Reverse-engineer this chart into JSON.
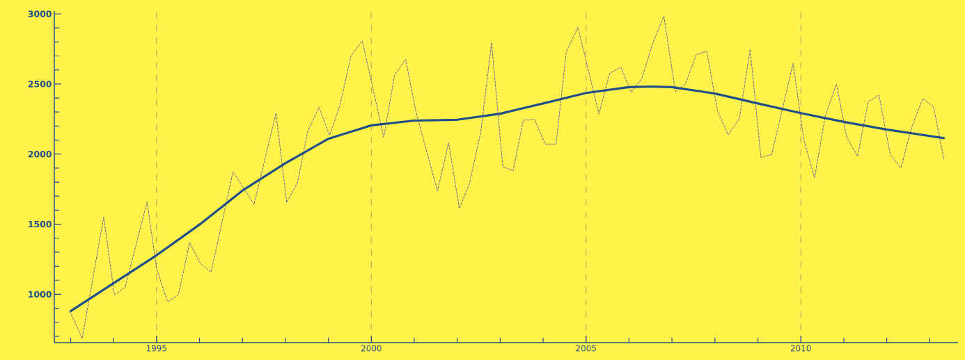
{
  "chart_data": {
    "type": "line",
    "xlim": [
      1992.62,
      2013.66
    ],
    "ylim": [
      655,
      3020
    ],
    "xticks": [
      {
        "value": 1993,
        "label": null
      },
      {
        "value": 1994,
        "label": null
      },
      1995,
      {
        "value": 1996,
        "label": null
      },
      {
        "value": 1997,
        "label": null
      },
      {
        "value": 1998,
        "label": null
      },
      {
        "value": 1999,
        "label": null
      },
      2000,
      {
        "value": 2001,
        "label": null
      },
      {
        "value": 2002,
        "label": null
      },
      {
        "value": 2003,
        "label": null
      },
      {
        "value": 2004,
        "label": null
      },
      2005,
      {
        "value": 2006,
        "label": null
      },
      {
        "value": 2007,
        "label": null
      },
      {
        "value": 2008,
        "label": null
      },
      {
        "value": 2009,
        "label": null
      },
      2010,
      {
        "value": 2011,
        "label": null
      },
      {
        "value": 2012,
        "label": null
      },
      {
        "value": 2013,
        "label": null
      }
    ],
    "yticks": [
      {
        "value": 700,
        "label": null
      },
      {
        "value": 800,
        "label": null
      },
      {
        "value": 900,
        "label": null
      },
      1000,
      {
        "value": 1100,
        "label": null
      },
      {
        "value": 1200,
        "label": null
      },
      {
        "value": 1300,
        "label": null
      },
      {
        "value": 1400,
        "label": null
      },
      1500,
      {
        "value": 1600,
        "label": null
      },
      {
        "value": 1700,
        "label": null
      },
      {
        "value": 1800,
        "label": null
      },
      {
        "value": 1900,
        "label": null
      },
      2000,
      {
        "value": 2100,
        "label": null
      },
      {
        "value": 2200,
        "label": null
      },
      {
        "value": 2300,
        "label": null
      },
      {
        "value": 2400,
        "label": null
      },
      2500,
      {
        "value": 2600,
        "label": null
      },
      {
        "value": 2700,
        "label": null
      },
      {
        "value": 2800,
        "label": null
      },
      {
        "value": 2900,
        "label": null
      },
      3000
    ],
    "grid": "x",
    "series": [
      {
        "color": "#4b48a6",
        "line_style": "dashed",
        "x": [
          1992.98,
          1993.27,
          1993.77,
          1994.02,
          1994.27,
          1994.78,
          1995.0,
          1995.26,
          1995.51,
          1995.77,
          1996.02,
          1996.27,
          1996.78,
          1997.27,
          1997.78,
          1998.03,
          1998.28,
          1998.52,
          1998.78,
          1999.03,
          1999.27,
          1999.53,
          1999.79,
          2000.29,
          2000.54,
          2000.8,
          2001.04,
          2001.54,
          2001.8,
          2002.05,
          2002.29,
          2002.55,
          2002.8,
          2003.06,
          2003.3,
          2003.54,
          2003.8,
          2004.05,
          2004.3,
          2004.54,
          2004.81,
          2005.3,
          2005.55,
          2005.81,
          2006.05,
          2006.3,
          2006.55,
          2006.81,
          2007.08,
          2007.31,
          2007.57,
          2007.81,
          2008.06,
          2008.31,
          2008.57,
          2008.82,
          2009.07,
          2009.32,
          2009.82,
          2010.07,
          2010.32,
          2010.57,
          2010.83,
          2011.07,
          2011.32,
          2011.57,
          2011.82,
          2012.08,
          2012.33,
          2012.58,
          2012.84,
          2013.09,
          2013.33
        ],
        "values": [
          879,
          685,
          1551,
          995,
          1050,
          1659,
          1182,
          945,
          997,
          1368,
          1220,
          1157,
          1874,
          1641,
          2292,
          1654,
          1795,
          2162,
          2333,
          2134,
          2349,
          2702,
          2808,
          2121,
          2560,
          2676,
          2300,
          1737,
          2081,
          1612,
          1795,
          2159,
          2796,
          1911,
          1881,
          2242,
          2245,
          2071,
          2071,
          2730,
          2904,
          2287,
          2576,
          2619,
          2441,
          2540,
          2788,
          2984,
          2446,
          2498,
          2710,
          2734,
          2308,
          2138,
          2255,
          2747,
          1977,
          1997,
          2647,
          2101,
          1831,
          2275,
          2498,
          2118,
          1985,
          2374,
          2419,
          1999,
          1902,
          2192,
          2396,
          2338,
          1964
        ]
      },
      {
        "color": "#1f4e89",
        "line_style": "solid",
        "x": [
          1993.0,
          1995,
          1996,
          1997,
          1998,
          1999,
          2000,
          2001,
          2002,
          2003,
          2004,
          2005,
          2006,
          2006.5,
          2007,
          2008,
          2009,
          2010,
          2011,
          2012,
          2013.33
        ],
        "values": [
          880,
          1278,
          1497,
          1740,
          1935,
          2109,
          2205,
          2239,
          2245,
          2288,
          2361,
          2436,
          2478,
          2482,
          2478,
          2432,
          2361,
          2292,
          2230,
          2175,
          2114
        ]
      }
    ]
  }
}
